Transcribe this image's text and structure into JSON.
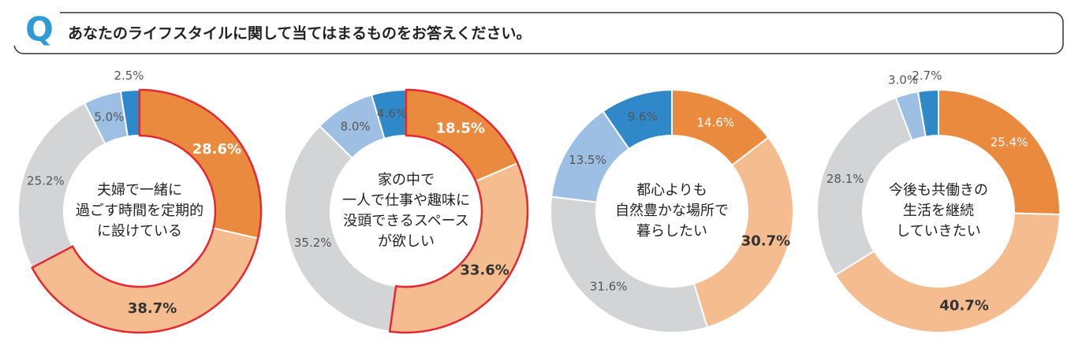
{
  "header": {
    "marker": "Q",
    "title": "あなたのライフスタイルに関して当てはまるものをお答えください。"
  },
  "chart_data": [
    {
      "type": "donut",
      "center_text": [
        "夫婦で一緒に",
        "過ごす時間を定期的",
        "に設けている"
      ],
      "values": [
        28.6,
        38.7,
        25.2,
        5.0,
        2.5
      ],
      "value_labels": [
        "28.6%",
        "38.7%",
        "25.2%",
        "5.0%",
        "2.5%"
      ],
      "colors": [
        "#ea8a3f",
        "#f5bd8f",
        "#d3d4d6",
        "#9dbfe4",
        "#2f88c8"
      ],
      "highlight_color": "#e8262f"
    },
    {
      "type": "donut",
      "center_text": [
        "家の中で",
        "一人で仕事や趣味に",
        "没頭できるスペース",
        "が欲しい"
      ],
      "values": [
        18.5,
        33.6,
        35.2,
        8.0,
        4.6
      ],
      "value_labels": [
        "18.5%",
        "33.6%",
        "35.2%",
        "8.0%",
        "4.6%"
      ],
      "colors": [
        "#ea8a3f",
        "#f5bd8f",
        "#d3d4d6",
        "#9dbfe4",
        "#2f88c8"
      ],
      "highlight_color": "#e8262f"
    },
    {
      "type": "donut",
      "center_text": [
        "都心よりも",
        "自然豊かな場所で",
        "暮らしたい"
      ],
      "values": [
        14.6,
        30.7,
        31.6,
        13.5,
        9.6
      ],
      "value_labels": [
        "14.6%",
        "30.7%",
        "31.6%",
        "13.5%",
        "9.6%"
      ],
      "colors": [
        "#ea8a3f",
        "#f5bd8f",
        "#d3d4d6",
        "#9dbfe4",
        "#2f88c8"
      ]
    },
    {
      "type": "donut",
      "center_text": [
        "今後も共働きの",
        "生活を継続",
        "していきたい"
      ],
      "values": [
        25.4,
        40.7,
        28.1,
        3.0,
        2.7
      ],
      "value_labels": [
        "25.4%",
        "40.7%",
        "28.1%",
        "3.0%",
        "2.7%"
      ],
      "colors": [
        "#ea8a3f",
        "#f5bd8f",
        "#d3d4d6",
        "#9dbfe4",
        "#2f88c8"
      ]
    }
  ]
}
